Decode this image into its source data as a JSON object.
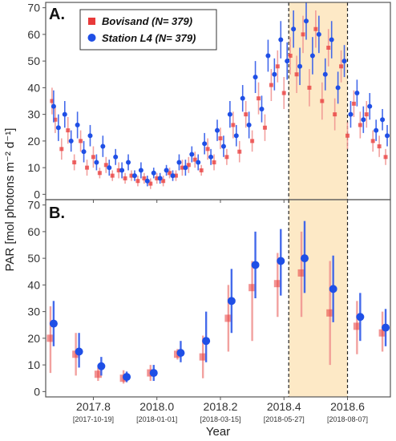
{
  "figure": {
    "y_axis_title": "PAR [mol photons m⁻² d⁻¹]",
    "x_axis_title": "Year",
    "panel_a_letter": "A.",
    "panel_b_letter": "B."
  },
  "colors": {
    "bovisand": "#e83a3a",
    "bovisand_err": "#f0908e",
    "station_l4": "#1f4fe6",
    "station_l4_err": "#3a62ea",
    "highlight": "#fde9c6",
    "frame": "#555555"
  },
  "chart_data": [
    {
      "type": "scatter",
      "panel": "A.",
      "ylim": [
        -2,
        72
      ],
      "xlim": [
        17.65,
        18.735
      ],
      "yticks": [
        0,
        10,
        20,
        30,
        40,
        50,
        60,
        70
      ],
      "legend": {
        "placement": "top-left",
        "entries": [
          "Bovisand (N= 379)",
          "Station L4 (N= 379)"
        ]
      },
      "highlight_span": [
        18.415,
        18.6
      ],
      "dashed_lines": [
        18.415,
        18.6
      ],
      "series": [
        {
          "name": "Bovisand (N= 379)",
          "marker": "square",
          "x": [
            17.67,
            17.68,
            17.7,
            17.72,
            17.74,
            17.76,
            17.78,
            17.8,
            17.82,
            17.84,
            17.86,
            17.88,
            17.9,
            17.92,
            17.94,
            17.96,
            17.98,
            18.0,
            18.02,
            18.04,
            18.06,
            18.08,
            18.1,
            18.12,
            18.14,
            18.16,
            18.18,
            18.2,
            18.22,
            18.24,
            18.26,
            18.28,
            18.3,
            18.32,
            18.34,
            18.36,
            18.38,
            18.4,
            18.42,
            18.44,
            18.46,
            18.48,
            18.5,
            18.52,
            18.54,
            18.56,
            18.58,
            18.6,
            18.62,
            18.64,
            18.66,
            18.68,
            18.7,
            18.72
          ],
          "y": [
            35,
            28,
            17,
            24,
            12,
            20,
            10,
            14,
            8,
            11,
            7,
            9,
            6,
            7,
            5,
            6,
            4,
            6,
            5,
            8,
            7,
            10,
            11,
            13,
            9,
            17,
            12,
            21,
            14,
            26,
            16,
            30,
            20,
            36,
            25,
            41,
            48,
            38,
            52,
            45,
            60,
            40,
            62,
            35,
            55,
            30,
            48,
            22,
            34,
            26,
            30,
            20,
            18,
            14
          ],
          "err": [
            5,
            5,
            4,
            5,
            3,
            4,
            3,
            4,
            2,
            3,
            2,
            3,
            2,
            2,
            2,
            2,
            2,
            2,
            2,
            2,
            2,
            3,
            3,
            3,
            2,
            4,
            3,
            4,
            3,
            5,
            4,
            5,
            4,
            6,
            5,
            6,
            6,
            6,
            7,
            7,
            7,
            7,
            7,
            7,
            7,
            6,
            6,
            5,
            5,
            5,
            5,
            4,
            4,
            3
          ]
        },
        {
          "name": "Station L4 (N= 379)",
          "marker": "circle",
          "x": [
            17.675,
            17.69,
            17.71,
            17.73,
            17.75,
            17.77,
            17.79,
            17.81,
            17.83,
            17.85,
            17.87,
            17.89,
            17.91,
            17.93,
            17.95,
            17.97,
            17.99,
            18.01,
            18.03,
            18.05,
            18.07,
            18.09,
            18.11,
            18.13,
            18.15,
            18.17,
            18.19,
            18.21,
            18.23,
            18.25,
            18.27,
            18.29,
            18.31,
            18.33,
            18.35,
            18.37,
            18.39,
            18.41,
            18.43,
            18.45,
            18.47,
            18.49,
            18.51,
            18.53,
            18.55,
            18.57,
            18.59,
            18.61,
            18.63,
            18.65,
            18.67,
            18.69,
            18.71,
            18.725
          ],
          "y": [
            33,
            25,
            30,
            20,
            26,
            16,
            22,
            12,
            18,
            10,
            14,
            9,
            12,
            7,
            9,
            5,
            8,
            6,
            9,
            7,
            12,
            10,
            15,
            12,
            19,
            14,
            24,
            18,
            30,
            22,
            36,
            26,
            44,
            32,
            52,
            45,
            58,
            50,
            62,
            48,
            65,
            52,
            60,
            45,
            58,
            40,
            50,
            30,
            38,
            28,
            33,
            24,
            28,
            22
          ],
          "err": [
            6,
            5,
            5,
            4,
            5,
            4,
            4,
            3,
            4,
            3,
            3,
            3,
            3,
            2,
            3,
            2,
            2,
            2,
            2,
            2,
            3,
            3,
            3,
            3,
            4,
            3,
            4,
            4,
            5,
            4,
            5,
            5,
            6,
            5,
            6,
            6,
            7,
            7,
            7,
            7,
            7,
            7,
            7,
            6,
            7,
            6,
            6,
            5,
            5,
            5,
            5,
            4,
            4,
            4
          ]
        }
      ]
    },
    {
      "type": "scatter",
      "panel": "B.",
      "ylim": [
        -2,
        72
      ],
      "xlim": [
        17.65,
        18.735
      ],
      "yticks": [
        0,
        10,
        20,
        30,
        40,
        50,
        60,
        70
      ],
      "xticks": [
        17.8,
        18.0,
        18.2,
        18.4,
        18.6
      ],
      "xtick_labels": [
        "2017.8",
        "2018.0",
        "2018.2",
        "2018.4",
        "2018.6"
      ],
      "xtick_dates": [
        "[2017-10-19]",
        "[2018-01-01]",
        "[2018-03-15]",
        "[2018-05-27]",
        "[2018-08-07]"
      ],
      "highlight_span": [
        18.415,
        18.6
      ],
      "dashed_lines": [
        18.415,
        18.6
      ],
      "series": [
        {
          "name": "Bovisand",
          "marker": "square",
          "x": [
            17.665,
            17.745,
            17.815,
            17.895,
            17.98,
            18.065,
            18.145,
            18.225,
            18.3,
            18.38,
            18.455,
            18.545,
            18.63,
            18.71
          ],
          "y": [
            20,
            14,
            6.5,
            5,
            7,
            14,
            13,
            27.5,
            39,
            40.5,
            44.5,
            29.5,
            24.5,
            22
          ],
          "ylow": [
            7,
            6,
            4,
            3,
            4,
            12,
            5,
            15,
            19,
            28,
            28,
            10,
            14,
            15
          ],
          "yhigh": [
            32,
            22,
            9,
            8,
            10,
            16,
            21,
            40,
            49,
            52,
            60,
            49,
            34,
            30
          ]
        },
        {
          "name": "Station L4",
          "marker": "circle",
          "x": [
            17.675,
            17.755,
            17.825,
            17.905,
            17.99,
            18.075,
            18.155,
            18.235,
            18.31,
            18.39,
            18.465,
            18.555,
            18.64,
            18.72
          ],
          "y": [
            25.5,
            15,
            9.5,
            5.5,
            7,
            14.5,
            19,
            34,
            47.5,
            49,
            50,
            38.5,
            28,
            24
          ],
          "ylow": [
            17,
            9,
            6,
            3.5,
            4,
            11,
            11,
            22,
            35,
            36,
            37,
            26,
            19,
            17
          ],
          "yhigh": [
            34,
            22,
            13,
            7.5,
            10,
            19,
            30,
            46,
            60,
            61,
            64,
            51,
            37,
            31
          ]
        }
      ]
    }
  ]
}
